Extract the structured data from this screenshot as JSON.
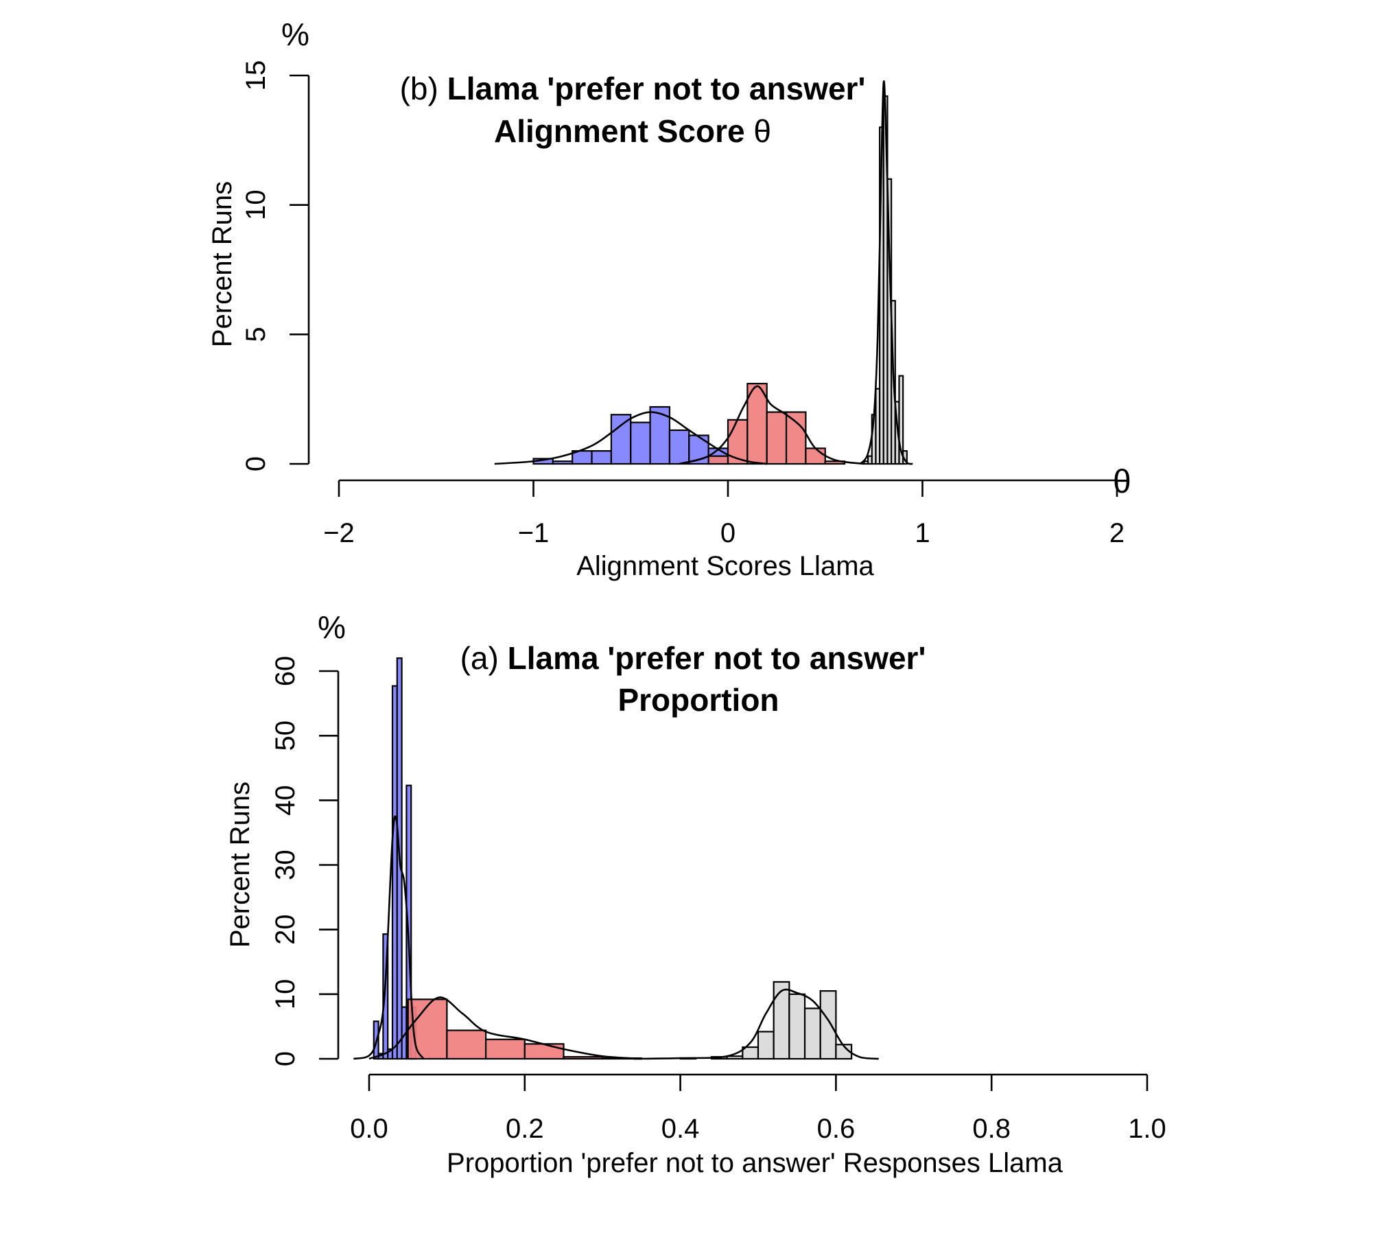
{
  "chart_data": [
    {
      "id": "b",
      "type": "histogram",
      "panel_label": "(b)",
      "title_line1": "Llama 'prefer not to answer'",
      "title_line2": "Alignment Score",
      "title_symbol": "θ",
      "y_unit": "%",
      "x_axis_symbol": "θ",
      "xlabel": "Alignment Scores Llama",
      "ylabel": "Percent Runs",
      "xlim": [
        -2,
        2
      ],
      "ylim": [
        0,
        15
      ],
      "xticks": [
        -2,
        -1,
        0,
        1,
        2
      ],
      "xtick_labels": [
        "−2",
        "−1",
        "0",
        "1",
        "2"
      ],
      "yticks": [
        0,
        5,
        10,
        15
      ],
      "ytick_labels": [
        "0",
        "5",
        "10",
        "15"
      ],
      "grid": false,
      "series": [
        {
          "color": "#8080ff",
          "bin_width": 0.1,
          "bins": [
            {
              "x0": -1.0,
              "y": 0.2
            },
            {
              "x0": -0.9,
              "y": 0.1
            },
            {
              "x0": -0.8,
              "y": 0.5
            },
            {
              "x0": -0.7,
              "y": 0.5
            },
            {
              "x0": -0.6,
              "y": 1.9
            },
            {
              "x0": -0.5,
              "y": 1.6
            },
            {
              "x0": -0.4,
              "y": 2.2
            },
            {
              "x0": -0.3,
              "y": 1.3
            },
            {
              "x0": -0.2,
              "y": 1.1
            },
            {
              "x0": -0.1,
              "y": 0.6
            }
          ],
          "density": [
            [
              -1.2,
              0.0
            ],
            [
              -1.0,
              0.1
            ],
            [
              -0.85,
              0.3
            ],
            [
              -0.7,
              0.7
            ],
            [
              -0.6,
              1.2
            ],
            [
              -0.5,
              1.75
            ],
            [
              -0.4,
              2.0
            ],
            [
              -0.3,
              1.8
            ],
            [
              -0.2,
              1.3
            ],
            [
              -0.1,
              0.8
            ],
            [
              0.0,
              0.35
            ],
            [
              0.1,
              0.1
            ],
            [
              0.2,
              0.0
            ]
          ]
        },
        {
          "color": "#f08080",
          "bin_width": 0.1,
          "bins": [
            {
              "x0": -0.1,
              "y": 0.3
            },
            {
              "x0": 0.0,
              "y": 1.7
            },
            {
              "x0": 0.1,
              "y": 3.1
            },
            {
              "x0": 0.2,
              "y": 2.0
            },
            {
              "x0": 0.3,
              "y": 2.0
            },
            {
              "x0": 0.4,
              "y": 0.6
            },
            {
              "x0": 0.5,
              "y": 0.1
            }
          ],
          "density": [
            [
              -0.25,
              0.0
            ],
            [
              -0.1,
              0.3
            ],
            [
              0.0,
              1.0
            ],
            [
              0.08,
              2.2
            ],
            [
              0.15,
              3.0
            ],
            [
              0.22,
              2.3
            ],
            [
              0.3,
              1.9
            ],
            [
              0.38,
              1.4
            ],
            [
              0.45,
              0.6
            ],
            [
              0.55,
              0.15
            ],
            [
              0.7,
              0.0
            ]
          ]
        },
        {
          "color": "#d9d9d9",
          "bin_width": 0.02,
          "bins": [
            {
              "x0": 0.7,
              "y": 0.1
            },
            {
              "x0": 0.72,
              "y": 0.3
            },
            {
              "x0": 0.74,
              "y": 1.9
            },
            {
              "x0": 0.76,
              "y": 2.9
            },
            {
              "x0": 0.78,
              "y": 13.0
            },
            {
              "x0": 0.8,
              "y": 14.2
            },
            {
              "x0": 0.82,
              "y": 11.0
            },
            {
              "x0": 0.84,
              "y": 6.3
            },
            {
              "x0": 0.86,
              "y": 2.4
            },
            {
              "x0": 0.88,
              "y": 3.4
            },
            {
              "x0": 0.9,
              "y": 0.5
            }
          ],
          "density": [
            [
              0.68,
              0.0
            ],
            [
              0.72,
              0.4
            ],
            [
              0.75,
              1.8
            ],
            [
              0.77,
              5.0
            ],
            [
              0.79,
              12.0
            ],
            [
              0.8,
              14.7
            ],
            [
              0.81,
              13.5
            ],
            [
              0.83,
              8.0
            ],
            [
              0.85,
              3.5
            ],
            [
              0.87,
              1.5
            ],
            [
              0.89,
              0.5
            ],
            [
              0.92,
              0.05
            ],
            [
              0.95,
              0.0
            ]
          ]
        }
      ]
    },
    {
      "id": "a",
      "type": "histogram",
      "panel_label": "(a)",
      "title_line1": "Llama 'prefer not to answer'",
      "title_line2": "Proportion",
      "y_unit": "%",
      "xlabel": "Proportion 'prefer not to answer' Responses Llama",
      "ylabel": "Percent Runs",
      "xlim": [
        0.0,
        1.0
      ],
      "ylim": [
        0,
        60
      ],
      "xticks": [
        0.0,
        0.2,
        0.4,
        0.6,
        0.8,
        1.0
      ],
      "xtick_labels": [
        "0.0",
        "0.2",
        "0.4",
        "0.6",
        "0.8",
        "1.0"
      ],
      "yticks": [
        0,
        10,
        20,
        30,
        40,
        50,
        60
      ],
      "ytick_labels": [
        "0",
        "10",
        "20",
        "30",
        "40",
        "50",
        "60"
      ],
      "grid": false,
      "series": [
        {
          "color": "#8080ff",
          "bin_width": 0.006,
          "bins": [
            {
              "x0": 0.006,
              "y": 5.8
            },
            {
              "x0": 0.012,
              "y": 0.8
            },
            {
              "x0": 0.018,
              "y": 19.3
            },
            {
              "x0": 0.024,
              "y": 1.5
            },
            {
              "x0": 0.03,
              "y": 57.7
            },
            {
              "x0": 0.036,
              "y": 62.0
            },
            {
              "x0": 0.042,
              "y": 8.0
            },
            {
              "x0": 0.048,
              "y": 42.3
            },
            {
              "x0": 0.054,
              "y": 8.0
            }
          ],
          "density": [
            [
              -0.02,
              0.0
            ],
            [
              0.0,
              0.5
            ],
            [
              0.01,
              3.0
            ],
            [
              0.02,
              10.0
            ],
            [
              0.03,
              34.0
            ],
            [
              0.035,
              37.0
            ],
            [
              0.04,
              30.0
            ],
            [
              0.045,
              27.5
            ],
            [
              0.05,
              20.0
            ],
            [
              0.055,
              8.0
            ],
            [
              0.06,
              2.0
            ],
            [
              0.07,
              0.0
            ]
          ]
        },
        {
          "color": "#f08080",
          "bin_width": 0.05,
          "bins": [
            {
              "x0": 0.05,
              "y": 9.2
            },
            {
              "x0": 0.1,
              "y": 4.4
            },
            {
              "x0": 0.15,
              "y": 3.0
            },
            {
              "x0": 0.2,
              "y": 2.3
            },
            {
              "x0": 0.25,
              "y": 0.3
            },
            {
              "x0": 0.3,
              "y": 0.1
            }
          ],
          "density": [
            [
              0.0,
              0.0
            ],
            [
              0.03,
              1.5
            ],
            [
              0.06,
              6.0
            ],
            [
              0.09,
              9.5
            ],
            [
              0.12,
              7.0
            ],
            [
              0.15,
              4.2
            ],
            [
              0.2,
              3.0
            ],
            [
              0.25,
              1.5
            ],
            [
              0.3,
              0.4
            ],
            [
              0.35,
              0.0
            ]
          ]
        },
        {
          "color": "#d9d9d9",
          "bin_width": 0.02,
          "bins": [
            {
              "x0": 0.4,
              "y": 0.1
            },
            {
              "x0": 0.44,
              "y": 0.3
            },
            {
              "x0": 0.46,
              "y": 0.4
            },
            {
              "x0": 0.48,
              "y": 1.8
            },
            {
              "x0": 0.5,
              "y": 4.2
            },
            {
              "x0": 0.52,
              "y": 11.9
            },
            {
              "x0": 0.54,
              "y": 10.0
            },
            {
              "x0": 0.56,
              "y": 7.8
            },
            {
              "x0": 0.58,
              "y": 10.5
            },
            {
              "x0": 0.6,
              "y": 2.2
            }
          ],
          "density": [
            [
              0.34,
              0.0
            ],
            [
              0.4,
              0.1
            ],
            [
              0.46,
              0.4
            ],
            [
              0.49,
              2.5
            ],
            [
              0.51,
              7.0
            ],
            [
              0.53,
              10.5
            ],
            [
              0.55,
              10.2
            ],
            [
              0.57,
              9.0
            ],
            [
              0.59,
              6.0
            ],
            [
              0.61,
              2.0
            ],
            [
              0.63,
              0.3
            ],
            [
              0.655,
              0.0
            ]
          ]
        }
      ]
    }
  ]
}
